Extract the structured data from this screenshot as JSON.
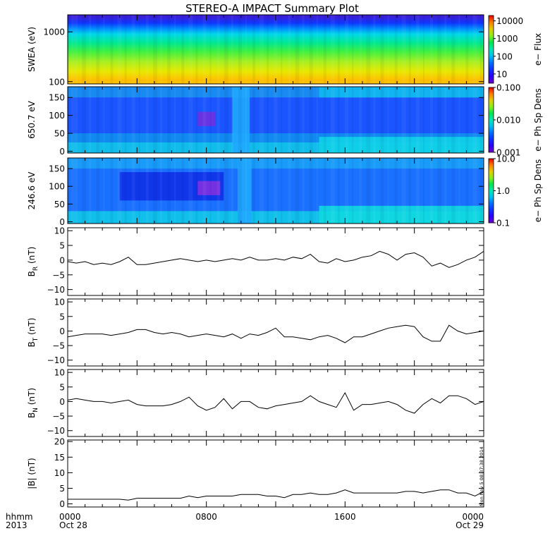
{
  "title": "STEREO-A IMPACT Summary Plot",
  "time_axis": {
    "row_labels": [
      "hhmm",
      "2013"
    ],
    "ticks": [
      {
        "hours": 0,
        "label": "0000",
        "date": "Oct 28"
      },
      {
        "hours": 8,
        "label": "0800",
        "date": ""
      },
      {
        "hours": 16,
        "label": "1600",
        "date": ""
      },
      {
        "hours": 24,
        "label": "0000",
        "date": "Oct 29"
      }
    ],
    "range_hours": [
      0,
      24
    ]
  },
  "timestamp": "Mon Nov  5 08:37:38 2014",
  "colors": {
    "line": "#000000",
    "frame": "#000000",
    "background": "#ffffff"
  },
  "chart_data": [
    {
      "type": "heatmap",
      "id": "swea",
      "ylabel": "SWEA (eV)",
      "yscale": "log",
      "ylim": [
        90,
        2200
      ],
      "yticks": [
        {
          "v": 100,
          "label": "100"
        },
        {
          "v": 1000,
          "label": "1000"
        }
      ],
      "colorbar": {
        "label": "e− Flux",
        "scale": "log",
        "range": [
          3,
          20000
        ],
        "ticks": [
          {
            "v": 10,
            "label": "10"
          },
          {
            "v": 100,
            "label": "100"
          },
          {
            "v": 1000,
            "label": "1000"
          },
          {
            "v": 10000,
            "label": "10000"
          }
        ]
      },
      "bands": [
        {
          "y": 2000,
          "color": "#3a1fd8"
        },
        {
          "y": 1500,
          "color": "#0e38ff"
        },
        {
          "y": 1150,
          "color": "#0090ff"
        },
        {
          "y": 900,
          "color": "#00d8e8"
        },
        {
          "y": 600,
          "color": "#00e890"
        },
        {
          "y": 400,
          "color": "#40f040"
        },
        {
          "y": 250,
          "color": "#a8f020"
        },
        {
          "y": 160,
          "color": "#e8e800"
        },
        {
          "y": 110,
          "color": "#ffc000"
        }
      ]
    },
    {
      "type": "heatmap",
      "id": "pad650",
      "ylabel": "650.7 eV",
      "ylim": [
        -5,
        180
      ],
      "yticks": [
        {
          "v": 0,
          "label": "0"
        },
        {
          "v": 50,
          "label": "50"
        },
        {
          "v": 100,
          "label": "100"
        },
        {
          "v": 150,
          "label": "150"
        }
      ],
      "colorbar": {
        "label": "e− Ph Sp Dens",
        "scale": "log",
        "range": [
          0.001,
          0.1
        ],
        "ticks": [
          {
            "v": 0.001,
            "label": "0.001"
          },
          {
            "v": 0.01,
            "label": "0.010"
          },
          {
            "v": 0.1,
            "label": "0.100"
          }
        ]
      },
      "regions": [
        {
          "t": [
            0,
            24
          ],
          "y": [
            -5,
            180
          ],
          "color": "#1a55ff"
        },
        {
          "t": [
            0,
            24
          ],
          "y": [
            -5,
            25
          ],
          "color": "#10c8e8"
        },
        {
          "t": [
            0,
            24
          ],
          "y": [
            25,
            50
          ],
          "color": "#1090f0"
        },
        {
          "t": [
            0,
            24
          ],
          "y": [
            150,
            180
          ],
          "color": "#1890f0"
        },
        {
          "t": [
            7.5,
            8.5
          ],
          "y": [
            70,
            110
          ],
          "color": "#7030e0"
        },
        {
          "t": [
            9.5,
            10.5
          ],
          "y": [
            -5,
            180
          ],
          "color": "#1fa8ff"
        },
        {
          "t": [
            14.5,
            24
          ],
          "y": [
            -5,
            40
          ],
          "color": "#10d0e8"
        },
        {
          "t": [
            14.5,
            24
          ],
          "y": [
            150,
            180
          ],
          "color": "#10b8f0"
        }
      ]
    },
    {
      "type": "heatmap",
      "id": "pad246",
      "ylabel": "246.6 eV",
      "ylim": [
        -5,
        180
      ],
      "yticks": [
        {
          "v": 0,
          "label": "0"
        },
        {
          "v": 50,
          "label": "50"
        },
        {
          "v": 100,
          "label": "100"
        },
        {
          "v": 150,
          "label": "150"
        }
      ],
      "colorbar": {
        "label": "e− Ph Sp Dens",
        "scale": "log",
        "range": [
          0.1,
          10
        ],
        "ticks": [
          {
            "v": 0.1,
            "label": "0.1"
          },
          {
            "v": 1,
            "label": "1.0"
          },
          {
            "v": 10,
            "label": "10.0"
          }
        ]
      },
      "regions": [
        {
          "t": [
            0,
            24
          ],
          "y": [
            -5,
            180
          ],
          "color": "#1a70ff"
        },
        {
          "t": [
            0,
            24
          ],
          "y": [
            -5,
            30
          ],
          "color": "#10c8e8"
        },
        {
          "t": [
            0,
            24
          ],
          "y": [
            150,
            180
          ],
          "color": "#1aa0f8"
        },
        {
          "t": [
            3,
            9
          ],
          "y": [
            60,
            140
          ],
          "color": "#1030e8"
        },
        {
          "t": [
            7.5,
            8.8
          ],
          "y": [
            75,
            115
          ],
          "color": "#8030e0"
        },
        {
          "t": [
            9.8,
            10.6
          ],
          "y": [
            -5,
            180
          ],
          "color": "#20a8ff"
        },
        {
          "t": [
            14.5,
            24
          ],
          "y": [
            -5,
            45
          ],
          "color": "#10d8e0"
        }
      ]
    },
    {
      "type": "line",
      "id": "br",
      "ylabel": "B_R (nT)",
      "ylim": [
        -12,
        11
      ],
      "yticks": [
        {
          "v": -10,
          "label": "−10"
        },
        {
          "v": -5,
          "label": "−5"
        },
        {
          "v": 0,
          "label": "0"
        },
        {
          "v": 5,
          "label": "5"
        },
        {
          "v": 10,
          "label": "10"
        }
      ],
      "x": [
        0,
        0.5,
        1,
        1.5,
        2,
        2.5,
        3,
        3.5,
        4,
        4.5,
        5,
        5.5,
        6,
        6.5,
        7,
        7.5,
        8,
        8.5,
        9,
        9.5,
        10,
        10.5,
        11,
        11.5,
        12,
        12.5,
        13,
        13.5,
        14,
        14.5,
        15,
        15.5,
        16,
        16.5,
        17,
        17.5,
        18,
        18.5,
        19,
        19.5,
        20,
        20.5,
        21,
        21.5,
        22,
        22.5,
        23,
        23.5,
        24
      ],
      "y": [
        -0.5,
        -1,
        -0.5,
        -1.5,
        -1,
        -1.5,
        -0.5,
        1,
        -1.5,
        -1.5,
        -1,
        -0.5,
        0,
        0.5,
        0,
        -0.5,
        0,
        -0.5,
        0,
        0.5,
        0,
        1,
        0,
        0,
        0.5,
        0,
        1,
        0.5,
        2,
        -0.5,
        -1,
        0.5,
        -0.5,
        0,
        1,
        1.5,
        3,
        2,
        0,
        2,
        2.5,
        1,
        -2,
        -1,
        -2.5,
        -1.5,
        0,
        1,
        3
      ]
    },
    {
      "type": "line",
      "id": "bt",
      "ylabel": "B_T (nT)",
      "ylim": [
        -12,
        11
      ],
      "yticks": [
        {
          "v": -10,
          "label": "−10"
        },
        {
          "v": -5,
          "label": "−5"
        },
        {
          "v": 0,
          "label": "0"
        },
        {
          "v": 5,
          "label": "5"
        },
        {
          "v": 10,
          "label": "10"
        }
      ],
      "x": [
        0,
        0.5,
        1,
        1.5,
        2,
        2.5,
        3,
        3.5,
        4,
        4.5,
        5,
        5.5,
        6,
        6.5,
        7,
        7.5,
        8,
        8.5,
        9,
        9.5,
        10,
        10.5,
        11,
        11.5,
        12,
        12.5,
        13,
        13.5,
        14,
        14.5,
        15,
        15.5,
        16,
        16.5,
        17,
        17.5,
        18,
        18.5,
        19,
        19.5,
        20,
        20.5,
        21,
        21.5,
        22,
        22.5,
        23,
        23.5,
        24
      ],
      "y": [
        -2,
        -1.5,
        -1,
        -1,
        -1,
        -1.5,
        -1,
        -0.5,
        0.5,
        0.5,
        -0.5,
        -1,
        -0.5,
        -1,
        -2,
        -1.5,
        -1,
        -1.5,
        -2,
        -1,
        -2.5,
        -1,
        -1.5,
        -0.5,
        1,
        -2,
        -2,
        -2.5,
        -3,
        -2,
        -1.5,
        -2.5,
        -4,
        -2,
        -2,
        -1,
        0,
        1,
        1.5,
        2,
        1.5,
        -2,
        -3.5,
        -3.5,
        2,
        0,
        -1,
        -0.5,
        0
      ]
    },
    {
      "type": "line",
      "id": "bn",
      "ylabel": "B_N (nT)",
      "ylim": [
        -12,
        11
      ],
      "yticks": [
        {
          "v": -10,
          "label": "−10"
        },
        {
          "v": -5,
          "label": "−5"
        },
        {
          "v": 0,
          "label": "0"
        },
        {
          "v": 5,
          "label": "5"
        },
        {
          "v": 10,
          "label": "10"
        }
      ],
      "x": [
        0,
        0.5,
        1,
        1.5,
        2,
        2.5,
        3,
        3.5,
        4,
        4.5,
        5,
        5.5,
        6,
        6.5,
        7,
        7.5,
        8,
        8.5,
        9,
        9.5,
        10,
        10.5,
        11,
        11.5,
        12,
        12.5,
        13,
        13.5,
        14,
        14.5,
        15,
        15.5,
        16,
        16.5,
        17,
        17.5,
        18,
        18.5,
        19,
        19.5,
        20,
        20.5,
        21,
        21.5,
        22,
        22.5,
        23,
        23.5,
        24
      ],
      "y": [
        0.5,
        1,
        0.5,
        0,
        0,
        -0.5,
        0,
        0.5,
        -1,
        -1.5,
        -1.5,
        -1.5,
        -1,
        0,
        1.5,
        -1.5,
        -3,
        -2,
        1,
        -2.5,
        0,
        0,
        -2,
        -2.5,
        -1.5,
        -1,
        -0.5,
        0,
        2,
        0,
        -1,
        -2,
        3,
        -3,
        -1,
        -1,
        -0.5,
        0,
        -1,
        -3,
        -4,
        -1,
        1,
        -0.5,
        2,
        2,
        1,
        -1,
        0
      ]
    },
    {
      "type": "line",
      "id": "bmag",
      "ylabel": "|B| (nT)",
      "ylim": [
        -1,
        20.5
      ],
      "yticks": [
        {
          "v": 0,
          "label": "0"
        },
        {
          "v": 5,
          "label": "5"
        },
        {
          "v": 10,
          "label": "10"
        },
        {
          "v": 15,
          "label": "15"
        },
        {
          "v": 20,
          "label": "20"
        }
      ],
      "x": [
        0,
        0.5,
        1,
        1.5,
        2,
        2.5,
        3,
        3.5,
        4,
        4.5,
        5,
        5.5,
        6,
        6.5,
        7,
        7.5,
        8,
        8.5,
        9,
        9.5,
        10,
        10.5,
        11,
        11.5,
        12,
        12.5,
        13,
        13.5,
        14,
        14.5,
        15,
        15.5,
        16,
        16.5,
        17,
        17.5,
        18,
        18.5,
        19,
        19.5,
        20,
        20.5,
        21,
        21.5,
        22,
        22.5,
        23,
        23.5,
        24
      ],
      "y": [
        1.5,
        1.5,
        1.5,
        1.5,
        1.5,
        1.5,
        1.5,
        1.2,
        1.8,
        1.8,
        1.8,
        1.8,
        1.8,
        1.8,
        2.5,
        2,
        2.5,
        2.5,
        2.5,
        2.5,
        3,
        3,
        3,
        2.5,
        2.5,
        2,
        3,
        3,
        3.5,
        3,
        3,
        3.5,
        4.5,
        3.5,
        3.5,
        3.5,
        3.5,
        3.5,
        3.5,
        4,
        4,
        3.5,
        4,
        4.5,
        4.5,
        3.5,
        3.5,
        2.5,
        4
      ]
    }
  ]
}
